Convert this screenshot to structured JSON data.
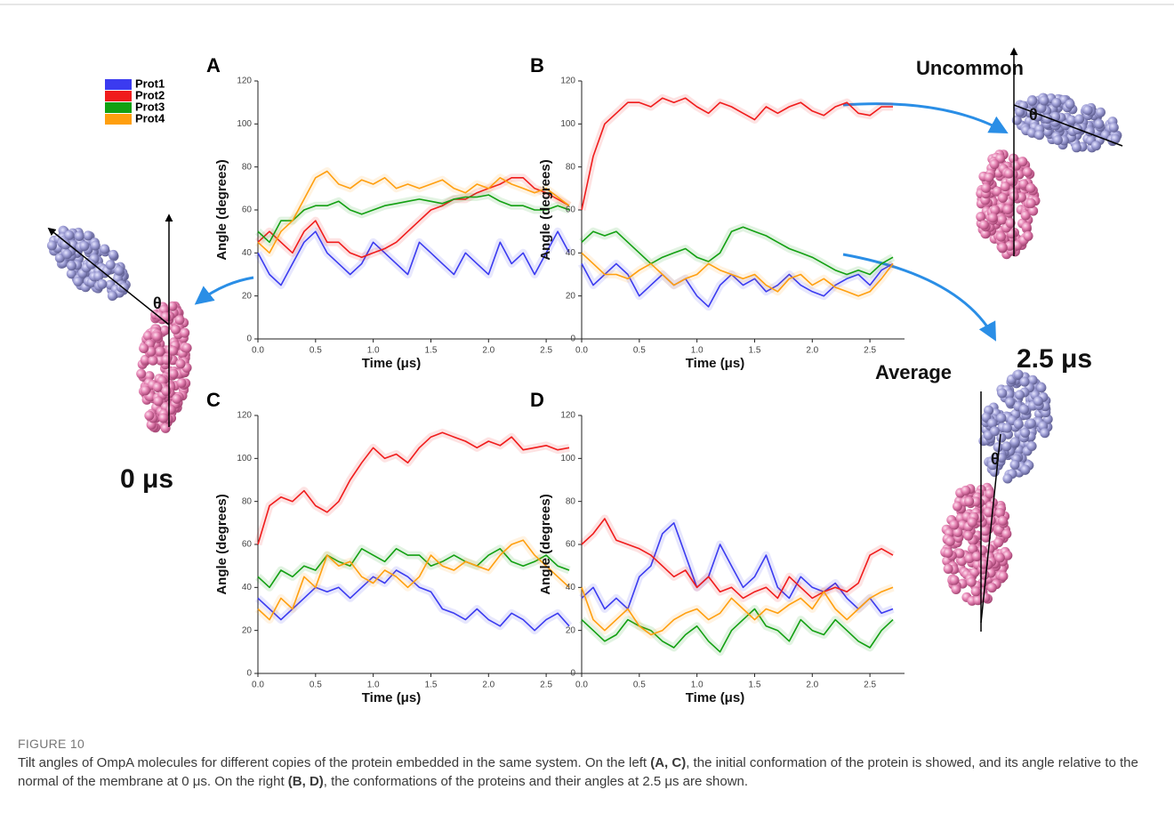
{
  "chart_data": [
    {
      "type": "line",
      "label": "A",
      "xlabel": "Time (μs)",
      "ylabel": "Angle (degrees)",
      "x": [
        0,
        0.1,
        0.2,
        0.3,
        0.4,
        0.5,
        0.6,
        0.7,
        0.8,
        0.9,
        1.0,
        1.1,
        1.2,
        1.3,
        1.4,
        1.5,
        1.6,
        1.7,
        1.8,
        1.9,
        2.0,
        2.1,
        2.2,
        2.3,
        2.4,
        2.5,
        2.6,
        2.7
      ],
      "xlim": [
        0,
        2.8
      ],
      "ylim": [
        0,
        120
      ],
      "xticks": [
        {
          "value": 0,
          "label": "0.0"
        },
        0.5,
        {
          "value": 1,
          "label": "1.0"
        },
        1.5,
        {
          "value": 2,
          "label": "2.0"
        },
        2.5
      ],
      "yticks": [
        0,
        20,
        40,
        60,
        80,
        100,
        120
      ],
      "series": [
        {
          "name": "Prot1",
          "color": "#3b3bf0",
          "values": [
            40,
            30,
            25,
            35,
            45,
            50,
            40,
            35,
            30,
            35,
            45,
            40,
            35,
            30,
            45,
            40,
            35,
            30,
            40,
            35,
            30,
            45,
            35,
            40,
            30,
            40,
            50,
            40
          ]
        },
        {
          "name": "Prot2",
          "color": "#f01c1c",
          "values": [
            45,
            50,
            45,
            40,
            50,
            55,
            45,
            45,
            40,
            38,
            40,
            42,
            45,
            50,
            55,
            60,
            62,
            65,
            65,
            68,
            70,
            72,
            75,
            75,
            70,
            68,
            65,
            62
          ]
        },
        {
          "name": "Prot3",
          "color": "#12a012",
          "values": [
            50,
            45,
            55,
            55,
            60,
            62,
            62,
            64,
            60,
            58,
            60,
            62,
            63,
            64,
            65,
            64,
            63,
            65,
            66,
            66,
            67,
            64,
            62,
            62,
            60,
            60,
            62,
            60
          ]
        },
        {
          "name": "Prot4",
          "color": "#ff9f0f",
          "values": [
            45,
            40,
            50,
            55,
            65,
            75,
            78,
            72,
            70,
            74,
            72,
            75,
            70,
            72,
            70,
            72,
            74,
            70,
            68,
            72,
            70,
            75,
            72,
            70,
            68,
            70,
            66,
            62
          ]
        }
      ]
    },
    {
      "type": "line",
      "label": "B",
      "xlabel": "Time (μs)",
      "ylabel": "Angle (degrees)",
      "x": [
        0,
        0.1,
        0.2,
        0.3,
        0.4,
        0.5,
        0.6,
        0.7,
        0.8,
        0.9,
        1.0,
        1.1,
        1.2,
        1.3,
        1.4,
        1.5,
        1.6,
        1.7,
        1.8,
        1.9,
        2.0,
        2.1,
        2.2,
        2.3,
        2.4,
        2.5,
        2.6,
        2.7
      ],
      "xlim": [
        0,
        2.8
      ],
      "ylim": [
        0,
        120
      ],
      "xticks": [
        {
          "value": 0,
          "label": "0.0"
        },
        0.5,
        {
          "value": 1,
          "label": "1.0"
        },
        1.5,
        {
          "value": 2,
          "label": "2.0"
        },
        2.5
      ],
      "yticks": [
        0,
        20,
        40,
        60,
        80,
        100,
        120
      ],
      "series": [
        {
          "color": "#3b3bf0",
          "values": [
            35,
            25,
            30,
            35,
            30,
            20,
            25,
            30,
            25,
            28,
            20,
            15,
            25,
            30,
            25,
            28,
            22,
            25,
            30,
            25,
            22,
            20,
            25,
            28,
            30,
            25,
            32,
            35
          ]
        },
        {
          "color": "#f01c1c",
          "values": [
            60,
            85,
            100,
            105,
            110,
            110,
            108,
            112,
            110,
            112,
            108,
            105,
            110,
            108,
            105,
            102,
            108,
            105,
            108,
            110,
            106,
            104,
            108,
            110,
            105,
            104,
            108,
            108
          ]
        },
        {
          "color": "#12a012",
          "values": [
            45,
            50,
            48,
            50,
            45,
            40,
            35,
            38,
            40,
            42,
            38,
            36,
            40,
            50,
            52,
            50,
            48,
            45,
            42,
            40,
            38,
            35,
            32,
            30,
            32,
            30,
            35,
            38
          ]
        },
        {
          "color": "#ff9f0f",
          "values": [
            40,
            35,
            30,
            30,
            28,
            32,
            35,
            30,
            25,
            28,
            30,
            35,
            32,
            30,
            28,
            30,
            25,
            22,
            28,
            30,
            25,
            28,
            24,
            22,
            20,
            22,
            28,
            35
          ]
        }
      ]
    },
    {
      "type": "line",
      "label": "C",
      "xlabel": "Time (μs)",
      "ylabel": "Angle (degrees)",
      "x": [
        0,
        0.1,
        0.2,
        0.3,
        0.4,
        0.5,
        0.6,
        0.7,
        0.8,
        0.9,
        1.0,
        1.1,
        1.2,
        1.3,
        1.4,
        1.5,
        1.6,
        1.7,
        1.8,
        1.9,
        2.0,
        2.1,
        2.2,
        2.3,
        2.4,
        2.5,
        2.6,
        2.7
      ],
      "xlim": [
        0,
        2.8
      ],
      "ylim": [
        0,
        120
      ],
      "xticks": [
        {
          "value": 0,
          "label": "0.0"
        },
        0.5,
        {
          "value": 1,
          "label": "1.0"
        },
        1.5,
        {
          "value": 2,
          "label": "2.0"
        },
        2.5
      ],
      "yticks": [
        0,
        20,
        40,
        60,
        80,
        100,
        120
      ],
      "series": [
        {
          "color": "#3b3bf0",
          "values": [
            35,
            30,
            25,
            30,
            35,
            40,
            38,
            40,
            35,
            40,
            45,
            42,
            48,
            45,
            40,
            38,
            30,
            28,
            25,
            30,
            25,
            22,
            28,
            25,
            20,
            25,
            28,
            22
          ]
        },
        {
          "color": "#f01c1c",
          "values": [
            60,
            78,
            82,
            80,
            85,
            78,
            75,
            80,
            90,
            98,
            105,
            100,
            102,
            98,
            105,
            110,
            112,
            110,
            108,
            105,
            108,
            106,
            110,
            104,
            105,
            106,
            104,
            105
          ]
        },
        {
          "color": "#12a012",
          "values": [
            45,
            40,
            48,
            45,
            50,
            48,
            55,
            52,
            50,
            58,
            55,
            52,
            58,
            55,
            55,
            50,
            52,
            55,
            52,
            50,
            55,
            58,
            52,
            50,
            52,
            55,
            50,
            48
          ]
        },
        {
          "color": "#ff9f0f",
          "values": [
            30,
            25,
            35,
            30,
            45,
            40,
            55,
            50,
            52,
            45,
            42,
            48,
            45,
            40,
            45,
            55,
            50,
            48,
            52,
            50,
            48,
            55,
            60,
            62,
            55,
            50,
            45,
            40
          ]
        }
      ]
    },
    {
      "type": "line",
      "label": "D",
      "xlabel": "Time (μs)",
      "ylabel": "Angle (degrees)",
      "x": [
        0,
        0.1,
        0.2,
        0.3,
        0.4,
        0.5,
        0.6,
        0.7,
        0.8,
        0.9,
        1.0,
        1.1,
        1.2,
        1.3,
        1.4,
        1.5,
        1.6,
        1.7,
        1.8,
        1.9,
        2.0,
        2.1,
        2.2,
        2.3,
        2.4,
        2.5,
        2.6,
        2.7
      ],
      "xlim": [
        0,
        2.8
      ],
      "ylim": [
        0,
        120
      ],
      "xticks": [
        {
          "value": 0,
          "label": "0.0"
        },
        0.5,
        {
          "value": 1,
          "label": "1.0"
        },
        1.5,
        {
          "value": 2,
          "label": "2.0"
        },
        2.5
      ],
      "yticks": [
        0,
        20,
        40,
        60,
        80,
        100,
        120
      ],
      "series": [
        {
          "color": "#3b3bf0",
          "values": [
            35,
            40,
            30,
            35,
            30,
            45,
            50,
            65,
            70,
            55,
            40,
            45,
            60,
            50,
            40,
            45,
            55,
            40,
            35,
            45,
            40,
            38,
            42,
            35,
            30,
            35,
            28,
            30
          ]
        },
        {
          "color": "#f01c1c",
          "values": [
            60,
            65,
            72,
            62,
            60,
            58,
            55,
            50,
            45,
            48,
            40,
            45,
            38,
            40,
            35,
            38,
            40,
            35,
            45,
            40,
            35,
            38,
            40,
            38,
            42,
            55,
            58,
            55
          ]
        },
        {
          "color": "#12a012",
          "values": [
            25,
            20,
            15,
            18,
            25,
            22,
            20,
            15,
            12,
            18,
            22,
            15,
            10,
            20,
            25,
            30,
            22,
            20,
            15,
            25,
            20,
            18,
            25,
            20,
            15,
            12,
            20,
            25
          ]
        },
        {
          "color": "#ff9f0f",
          "values": [
            40,
            25,
            20,
            25,
            30,
            22,
            18,
            20,
            25,
            28,
            30,
            25,
            28,
            35,
            30,
            25,
            30,
            28,
            32,
            35,
            30,
            38,
            30,
            25,
            30,
            35,
            38,
            40
          ]
        }
      ]
    }
  ],
  "annotations": {
    "uncommon": "Uncommon",
    "average": "Average",
    "start_time": "0 μs",
    "end_time": "2.5 μs",
    "theta": "θ"
  },
  "figure": {
    "label": "FIGURE 10",
    "caption": [
      "Tilt angles of OmpA molecules for different copies of the protein embedded in the same system. On the left ",
      "(A, C)",
      ", the initial conformation of the protein is showed, and its angle relative to the normal of the membrane at 0 μs. On the right ",
      "(B, D)",
      ", the conformations of the proteins and their angles at 2.5 μs are shown."
    ]
  }
}
